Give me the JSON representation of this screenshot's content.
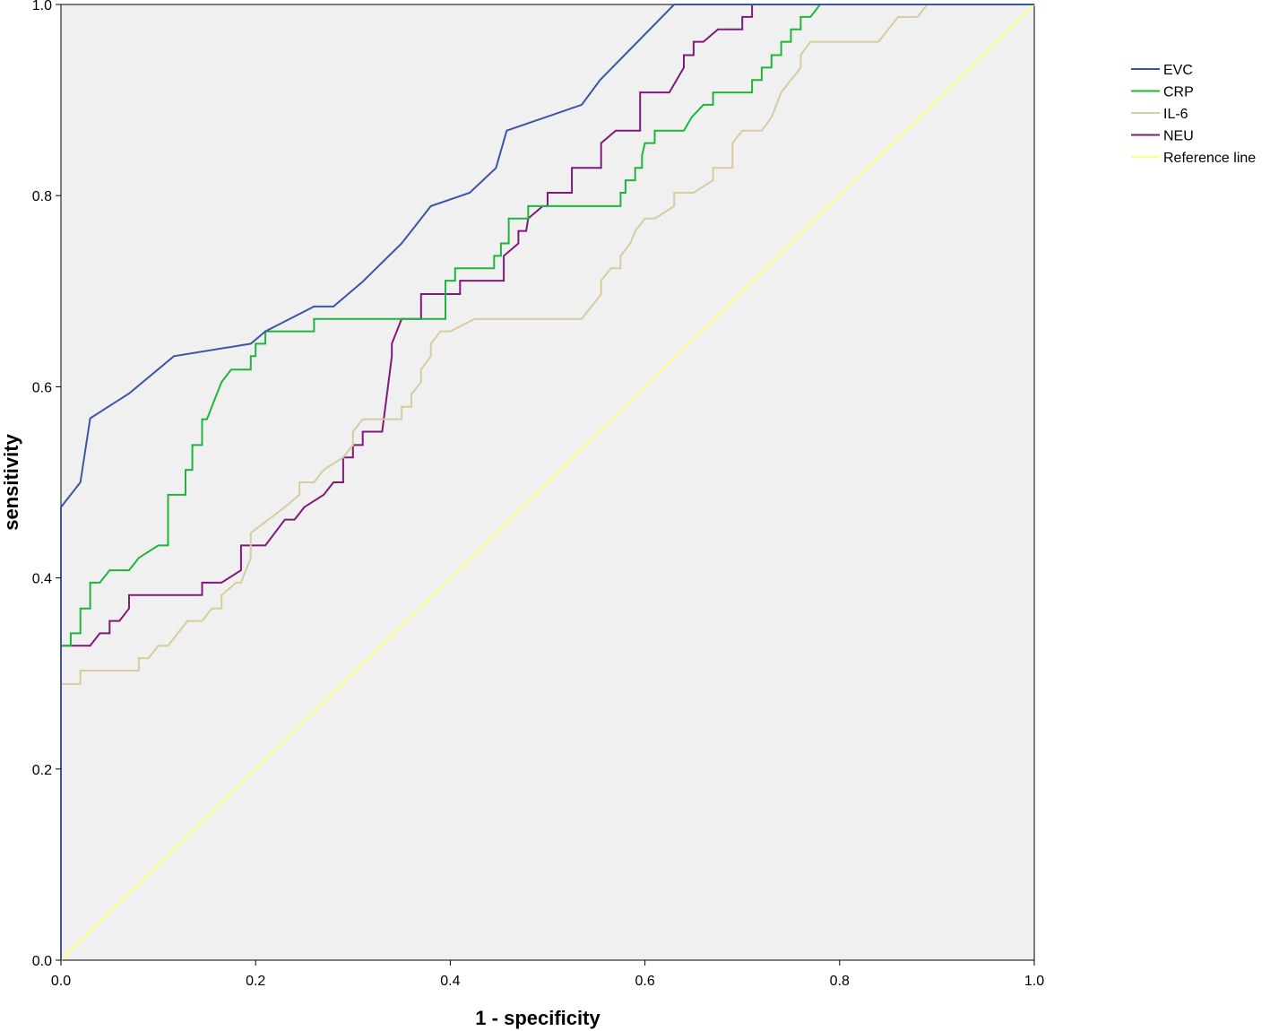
{
  "chart_data": {
    "type": "line",
    "title": "",
    "xlabel": "1 - specificity",
    "ylabel": "sensitivity",
    "xlim": [
      0,
      1
    ],
    "ylim": [
      0,
      1
    ],
    "x_ticks": [
      "0.0",
      "0.2",
      "0.4",
      "0.6",
      "0.8",
      "1.0"
    ],
    "y_ticks": [
      "0.0",
      "0.2",
      "0.4",
      "0.6",
      "0.8",
      "1.0"
    ],
    "grid": false,
    "legend_position": "top-right-outside",
    "plot_background": "#f0f0f0",
    "series": [
      {
        "name": "EVC",
        "color": "#3c56a5",
        "x": [
          0,
          0,
          0.02,
          0.03,
          0.07,
          0.116,
          0.195,
          0.21,
          0.26,
          0.28,
          0.31,
          0.35,
          0.38,
          0.42,
          0.447,
          0.458,
          0.535,
          0.554,
          0.63,
          1.0
        ],
        "y": [
          0,
          0.474,
          0.5,
          0.567,
          0.593,
          0.632,
          0.645,
          0.658,
          0.684,
          0.684,
          0.71,
          0.75,
          0.789,
          0.803,
          0.829,
          0.868,
          0.895,
          0.921,
          1.0,
          1.0
        ]
      },
      {
        "name": "CRP",
        "color": "#1fb43c",
        "x": [
          0,
          0,
          0.01,
          0.01,
          0.02,
          0.02,
          0.03,
          0.03,
          0.04,
          0.05,
          0.07,
          0.08,
          0.1,
          0.11,
          0.11,
          0.128,
          0.128,
          0.135,
          0.135,
          0.145,
          0.145,
          0.15,
          0.155,
          0.165,
          0.175,
          0.195,
          0.195,
          0.2,
          0.2,
          0.21,
          0.21,
          0.23,
          0.23,
          0.26,
          0.26,
          0.395,
          0.395,
          0.405,
          0.405,
          0.445,
          0.445,
          0.452,
          0.452,
          0.46,
          0.46,
          0.48,
          0.48,
          0.575,
          0.575,
          0.58,
          0.58,
          0.59,
          0.59,
          0.597,
          0.597,
          0.6,
          0.61,
          0.61,
          0.64,
          0.648,
          0.66,
          0.67,
          0.67,
          0.68,
          0.68,
          0.71,
          0.71,
          0.72,
          0.72,
          0.73,
          0.73,
          0.74,
          0.74,
          0.75,
          0.75,
          0.76,
          0.76,
          0.77,
          0.77,
          0.78,
          0.79,
          1.0
        ],
        "y": [
          0,
          0.329,
          0.329,
          0.342,
          0.342,
          0.368,
          0.368,
          0.395,
          0.395,
          0.408,
          0.408,
          0.421,
          0.434,
          0.434,
          0.487,
          0.487,
          0.513,
          0.513,
          0.539,
          0.539,
          0.566,
          0.566,
          0.579,
          0.605,
          0.618,
          0.618,
          0.632,
          0.632,
          0.645,
          0.645,
          0.658,
          0.658,
          0.658,
          0.658,
          0.671,
          0.671,
          0.711,
          0.711,
          0.724,
          0.724,
          0.737,
          0.737,
          0.75,
          0.75,
          0.776,
          0.776,
          0.789,
          0.789,
          0.803,
          0.803,
          0.816,
          0.816,
          0.829,
          0.829,
          0.842,
          0.855,
          0.855,
          0.868,
          0.868,
          0.882,
          0.895,
          0.895,
          0.908,
          0.908,
          0.908,
          0.908,
          0.921,
          0.921,
          0.934,
          0.934,
          0.947,
          0.947,
          0.961,
          0.961,
          0.974,
          0.974,
          0.987,
          0.987,
          0.987,
          1.0,
          1.0,
          1.0
        ]
      },
      {
        "name": "IL-6",
        "color": "#d6cc9e",
        "x": [
          0,
          0,
          0.02,
          0.02,
          0.08,
          0.08,
          0.09,
          0.1,
          0.11,
          0.12,
          0.13,
          0.135,
          0.145,
          0.155,
          0.16,
          0.165,
          0.165,
          0.18,
          0.185,
          0.195,
          0.195,
          0.23,
          0.23,
          0.245,
          0.245,
          0.26,
          0.26,
          0.27,
          0.27,
          0.29,
          0.29,
          0.3,
          0.3,
          0.31,
          0.31,
          0.35,
          0.35,
          0.36,
          0.36,
          0.37,
          0.37,
          0.38,
          0.38,
          0.39,
          0.39,
          0.4,
          0.4,
          0.425,
          0.425,
          0.465,
          0.465,
          0.535,
          0.545,
          0.555,
          0.555,
          0.565,
          0.565,
          0.575,
          0.575,
          0.585,
          0.585,
          0.59,
          0.59,
          0.6,
          0.6,
          0.61,
          0.61,
          0.63,
          0.63,
          0.65,
          0.65,
          0.67,
          0.67,
          0.69,
          0.69,
          0.7,
          0.7,
          0.72,
          0.72,
          0.73,
          0.73,
          0.74,
          0.75,
          0.76,
          0.76,
          0.77,
          0.77,
          0.84,
          0.84,
          0.85,
          0.85,
          0.86,
          0.86,
          0.88,
          0.88,
          0.89,
          0.89,
          1.0
        ],
        "y": [
          0,
          0.289,
          0.289,
          0.303,
          0.303,
          0.316,
          0.316,
          0.329,
          0.329,
          0.342,
          0.355,
          0.355,
          0.355,
          0.368,
          0.368,
          0.368,
          0.382,
          0.395,
          0.395,
          0.421,
          0.447,
          0.474,
          0.474,
          0.487,
          0.5,
          0.5,
          0.5,
          0.513,
          0.513,
          0.526,
          0.526,
          0.539,
          0.553,
          0.566,
          0.566,
          0.566,
          0.579,
          0.579,
          0.592,
          0.605,
          0.618,
          0.632,
          0.645,
          0.658,
          0.658,
          0.658,
          0.658,
          0.671,
          0.671,
          0.671,
          0.671,
          0.671,
          0.684,
          0.697,
          0.711,
          0.724,
          0.724,
          0.724,
          0.737,
          0.75,
          0.75,
          0.763,
          0.763,
          0.776,
          0.776,
          0.776,
          0.776,
          0.789,
          0.803,
          0.803,
          0.803,
          0.816,
          0.829,
          0.829,
          0.855,
          0.868,
          0.868,
          0.868,
          0.868,
          0.882,
          0.882,
          0.908,
          0.921,
          0.934,
          0.947,
          0.961,
          0.961,
          0.961,
          0.961,
          0.974,
          0.974,
          0.987,
          0.987,
          0.987,
          0.987,
          1.0,
          1.0,
          1.0
        ]
      },
      {
        "name": "NEU",
        "color": "#801a7a",
        "x": [
          0,
          0,
          0.03,
          0.04,
          0.04,
          0.05,
          0.05,
          0.06,
          0.07,
          0.07,
          0.145,
          0.145,
          0.165,
          0.185,
          0.185,
          0.21,
          0.23,
          0.24,
          0.25,
          0.25,
          0.27,
          0.28,
          0.29,
          0.29,
          0.3,
          0.3,
          0.31,
          0.31,
          0.32,
          0.33,
          0.34,
          0.34,
          0.35,
          0.37,
          0.37,
          0.41,
          0.41,
          0.455,
          0.455,
          0.47,
          0.47,
          0.478,
          0.48,
          0.48,
          0.495,
          0.5,
          0.5,
          0.525,
          0.525,
          0.555,
          0.555,
          0.57,
          0.57,
          0.595,
          0.595,
          0.625,
          0.64,
          0.64,
          0.65,
          0.65,
          0.66,
          0.66,
          0.675,
          0.675,
          0.7,
          0.7,
          0.71,
          0.71,
          1.0
        ],
        "y": [
          0,
          0.329,
          0.329,
          0.342,
          0.342,
          0.342,
          0.355,
          0.355,
          0.368,
          0.382,
          0.382,
          0.395,
          0.395,
          0.408,
          0.434,
          0.434,
          0.461,
          0.461,
          0.474,
          0.474,
          0.487,
          0.5,
          0.5,
          0.526,
          0.526,
          0.539,
          0.539,
          0.553,
          0.553,
          0.553,
          0.632,
          0.645,
          0.671,
          0.671,
          0.697,
          0.697,
          0.711,
          0.711,
          0.737,
          0.75,
          0.763,
          0.763,
          0.776,
          0.776,
          0.789,
          0.789,
          0.803,
          0.803,
          0.829,
          0.829,
          0.855,
          0.868,
          0.868,
          0.868,
          0.908,
          0.908,
          0.934,
          0.947,
          0.947,
          0.961,
          0.961,
          0.961,
          0.974,
          0.974,
          0.974,
          0.987,
          0.987,
          1.0,
          1.0
        ]
      },
      {
        "name": "Reference line",
        "color": "#ffff80",
        "x": [
          0,
          1
        ],
        "y": [
          0,
          1
        ]
      }
    ]
  }
}
